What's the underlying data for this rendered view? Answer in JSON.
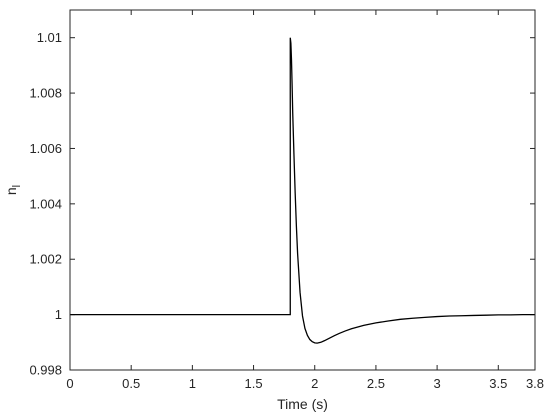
{
  "chart_data": {
    "type": "line",
    "xlabel": "Time (s)",
    "ylabel_main": "n",
    "ylabel_sub": "l",
    "xlim": [
      0,
      3.8
    ],
    "ylim": [
      0.998,
      1.011
    ],
    "xticks": [
      0,
      0.5,
      1,
      1.5,
      2,
      2.5,
      3,
      3.5,
      3.8
    ],
    "xtick_labels": [
      "0",
      "0.5",
      "1",
      "1.5",
      "2",
      "2.5",
      "3",
      "3.5",
      "3.8"
    ],
    "yticks": [
      0.998,
      1.0,
      1.002,
      1.004,
      1.006,
      1.008,
      1.01
    ],
    "ytick_labels": [
      "0.998",
      "1",
      "1.002",
      "1.004",
      "1.006",
      "1.008",
      "1.01"
    ],
    "grid": false,
    "series": [
      {
        "color": "#000000",
        "x": [
          0,
          1.8,
          1.8,
          1.805,
          1.81,
          1.815,
          1.82,
          1.83,
          1.84,
          1.85,
          1.86,
          1.88,
          1.9,
          1.92,
          1.94,
          1.96,
          1.98,
          2.0,
          2.02,
          2.05,
          2.08,
          2.12,
          2.16,
          2.2,
          2.25,
          2.3,
          2.4,
          2.5,
          2.6,
          2.7,
          2.8,
          2.9,
          3.0,
          3.1,
          3.2,
          3.3,
          3.4,
          3.5,
          3.6,
          3.7,
          3.8
        ],
        "y": [
          1.0,
          1.0,
          1.01,
          1.0098,
          1.0092,
          1.0083,
          1.0073,
          1.0058,
          1.0044,
          1.0032,
          1.0022,
          1.0008,
          0.99995,
          0.9995,
          0.99925,
          0.9991,
          0.99902,
          0.99898,
          0.99897,
          0.999,
          0.99906,
          0.99915,
          0.99924,
          0.99932,
          0.99941,
          0.99949,
          0.99961,
          0.9997,
          0.99977,
          0.99983,
          0.99987,
          0.9999,
          0.99993,
          0.99995,
          0.99996,
          0.99997,
          0.99998,
          0.99999,
          0.99999,
          1.0,
          1.0
        ]
      }
    ]
  }
}
